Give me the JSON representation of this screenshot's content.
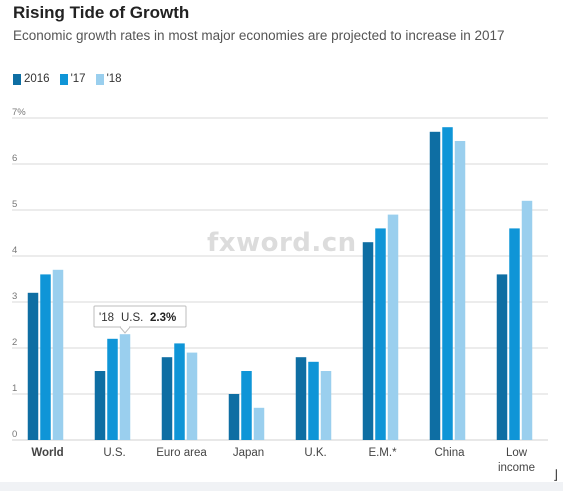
{
  "title": "Rising Tide of Growth",
  "subtitle": "Economic growth rates in most major economies are projected to increase in 2017",
  "watermark": "fxword.cn",
  "corner_mark": "⌋",
  "colors": {
    "2016": "#0e6ea3",
    "17": "#0f95d7",
    "18": "#9acfee",
    "grid": "#d9d9d9",
    "tick": "#777777"
  },
  "legend": [
    {
      "label": "2016",
      "color": "#0e6ea3"
    },
    {
      "label": "'17",
      "color": "#0f95d7"
    },
    {
      "label": "'18",
      "color": "#9acfee"
    }
  ],
  "tooltip": {
    "year": "'18",
    "region": "U.S.",
    "value": "2.3%"
  },
  "chart_data": {
    "type": "bar",
    "title": "Rising Tide of Growth",
    "subtitle": "Economic growth rates in most major economies are projected to increase in 2017",
    "categories": [
      "World",
      "U.S.",
      "Euro area",
      "Japan",
      "U.K.",
      "E.M.*",
      "China",
      "Low income"
    ],
    "series": [
      {
        "name": "2016",
        "values": [
          3.2,
          1.5,
          1.8,
          1.0,
          1.8,
          4.3,
          6.7,
          3.6
        ]
      },
      {
        "name": "'17",
        "values": [
          3.6,
          2.2,
          2.1,
          1.5,
          1.7,
          4.6,
          6.8,
          4.6
        ]
      },
      {
        "name": "'18",
        "values": [
          3.7,
          2.3,
          1.9,
          0.7,
          1.5,
          4.9,
          6.5,
          5.2
        ]
      }
    ],
    "yticks": [
      "0",
      "1",
      "2",
      "3",
      "4",
      "5",
      "6",
      "7%"
    ],
    "ylim": [
      0,
      7
    ],
    "grid": true,
    "legend_position": "top-left",
    "highlight_category": "World"
  }
}
